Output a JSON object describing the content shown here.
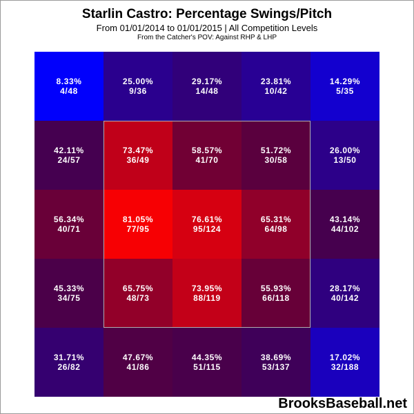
{
  "title": "Starlin Castro: Percentage Swings/Pitch",
  "subtitle": "From 01/01/2014 to 01/01/2015 | All Competition Levels",
  "subtitle2": "From the Catcher's POV:  Against RHP & LHP",
  "brand": "BrooksBaseball.net",
  "colors": {
    "low": "#0000ff",
    "high": "#ff0000"
  },
  "chart_data": {
    "type": "heatmap",
    "rows": 5,
    "cols": 5,
    "cells": [
      [
        {
          "pct": "8.33%",
          "value": 8.33,
          "count": "4/48"
        },
        {
          "pct": "25.00%",
          "value": 25.0,
          "count": "9/36"
        },
        {
          "pct": "29.17%",
          "value": 29.17,
          "count": "14/48"
        },
        {
          "pct": "23.81%",
          "value": 23.81,
          "count": "10/42"
        },
        {
          "pct": "14.29%",
          "value": 14.29,
          "count": "5/35"
        }
      ],
      [
        {
          "pct": "42.11%",
          "value": 42.11,
          "count": "24/57"
        },
        {
          "pct": "73.47%",
          "value": 73.47,
          "count": "36/49"
        },
        {
          "pct": "58.57%",
          "value": 58.57,
          "count": "41/70"
        },
        {
          "pct": "51.72%",
          "value": 51.72,
          "count": "30/58"
        },
        {
          "pct": "26.00%",
          "value": 26.0,
          "count": "13/50"
        }
      ],
      [
        {
          "pct": "56.34%",
          "value": 56.34,
          "count": "40/71"
        },
        {
          "pct": "81.05%",
          "value": 81.05,
          "count": "77/95"
        },
        {
          "pct": "76.61%",
          "value": 76.61,
          "count": "95/124"
        },
        {
          "pct": "65.31%",
          "value": 65.31,
          "count": "64/98"
        },
        {
          "pct": "43.14%",
          "value": 43.14,
          "count": "44/102"
        }
      ],
      [
        {
          "pct": "45.33%",
          "value": 45.33,
          "count": "34/75"
        },
        {
          "pct": "65.75%",
          "value": 65.75,
          "count": "48/73"
        },
        {
          "pct": "73.95%",
          "value": 73.95,
          "count": "88/119"
        },
        {
          "pct": "55.93%",
          "value": 55.93,
          "count": "66/118"
        },
        {
          "pct": "28.17%",
          "value": 28.17,
          "count": "40/142"
        }
      ],
      [
        {
          "pct": "31.71%",
          "value": 31.71,
          "count": "26/82"
        },
        {
          "pct": "47.67%",
          "value": 47.67,
          "count": "41/86"
        },
        {
          "pct": "44.35%",
          "value": 44.35,
          "count": "51/115"
        },
        {
          "pct": "38.69%",
          "value": 38.69,
          "count": "53/137"
        },
        {
          "pct": "17.02%",
          "value": 17.02,
          "count": "32/188"
        }
      ]
    ],
    "strike_zone": {
      "row_start": 1,
      "row_end": 3,
      "col_start": 1,
      "col_end": 3
    }
  }
}
